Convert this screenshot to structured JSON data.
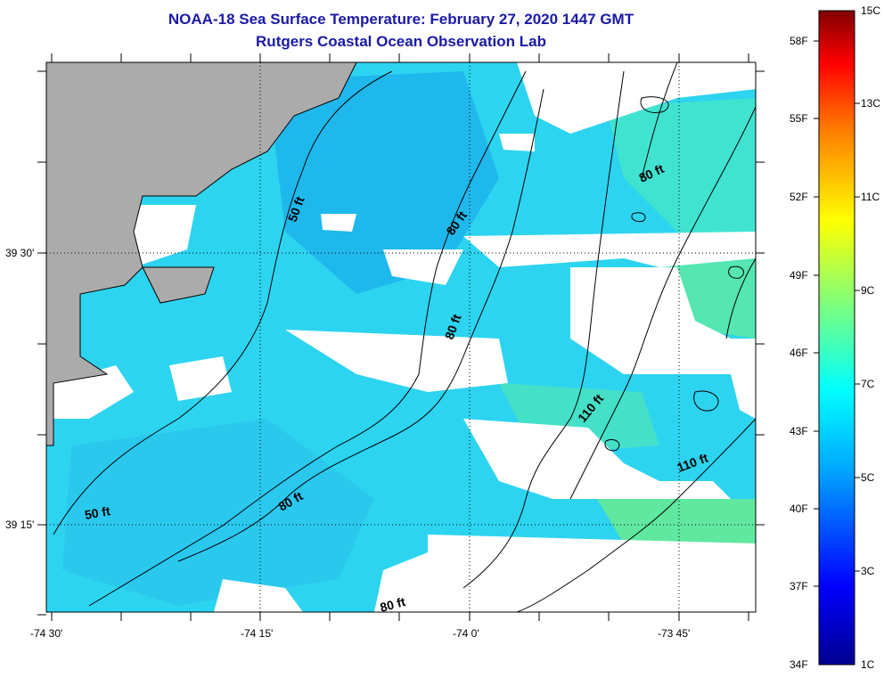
{
  "header": {
    "title": "NOAA-18 Sea Surface Temperature:  February 27, 2020 1447 GMT",
    "subtitle": "Rutgers Coastal Ocean Observation Lab"
  },
  "map": {
    "lat_labels": [
      "39 30'",
      "39 15'"
    ],
    "lon_labels": [
      "-74 30'",
      "-74 15'",
      "-74 0'",
      "-73 45'"
    ],
    "depth_labels": [
      "50 ft",
      "80 ft",
      "80 ft",
      "80 ft",
      "80 ft",
      "80 ft",
      "110 ft",
      "110 ft",
      "50 ft"
    ]
  },
  "colorbar": {
    "fahrenheit_labels": [
      "58F",
      "55F",
      "52F",
      "49F",
      "46F",
      "43F",
      "40F",
      "37F",
      "34F"
    ],
    "celsius_labels": [
      "15C",
      "13C",
      "11C",
      "9C",
      "7C",
      "5C",
      "3C",
      "1C"
    ]
  },
  "colors": {
    "land": "#ababab",
    "sst_primary": "#2dd4f0",
    "sst_cool": "#1fb8ec",
    "sst_warm": "#55e6b2",
    "title": "#1a1aa6"
  }
}
